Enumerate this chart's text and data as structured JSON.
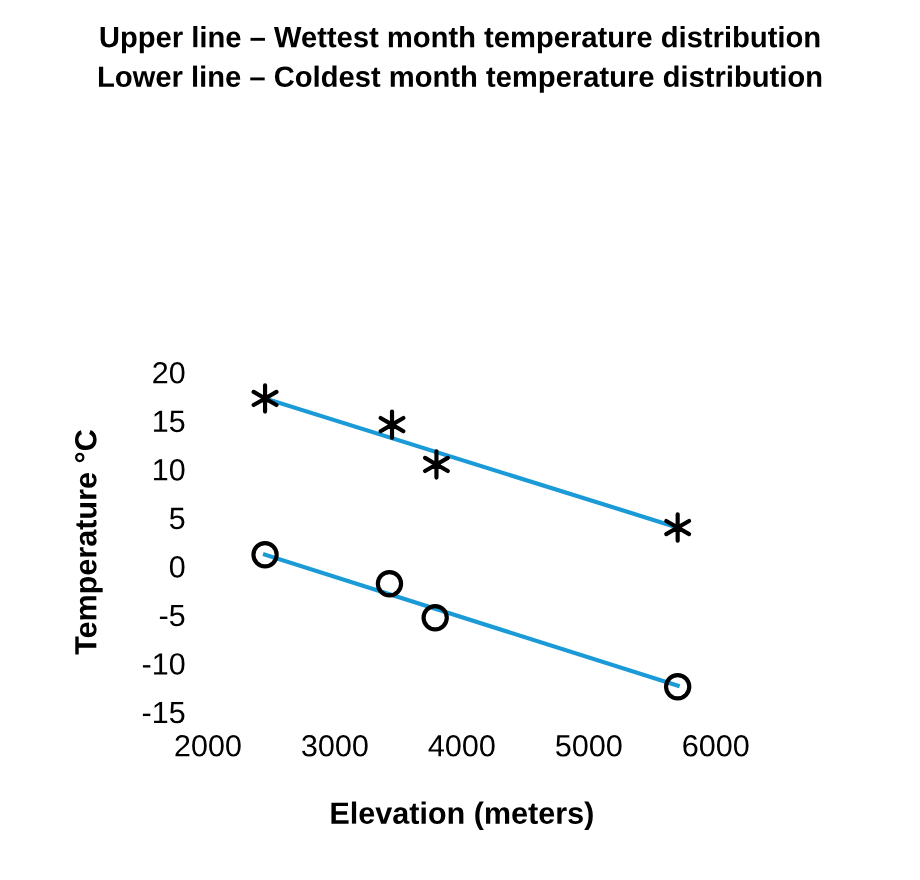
{
  "chart_data": {
    "type": "scatter",
    "title": "Upper line – Wettest month temperature distribution",
    "subtitle": "Lower line – Coldest month temperature distribution",
    "xlabel": "Elevation (meters)",
    "ylabel": "Temperature °C",
    "series": [
      {
        "marker": "cross",
        "color": "#000000",
        "x": [
          2450,
          3450,
          3800,
          5700
        ],
        "values": [
          17.3,
          14.6,
          10.5,
          4
        ]
      },
      {
        "marker": "circle",
        "color": "#000000",
        "x": [
          2450,
          3430,
          3790,
          5700
        ],
        "values": [
          1.2,
          -1.8,
          -5.3,
          -12.4
        ]
      },
      {
        "type": "line",
        "marker": "none",
        "color": "#1a9ad6",
        "x": [
          2450,
          5700
        ],
        "values": [
          17.3,
          4
        ]
      },
      {
        "type": "line",
        "marker": "none",
        "color": "#1a9ad6",
        "x": [
          2450,
          5700
        ],
        "values": [
          1.2,
          -12.3
        ]
      }
    ],
    "xlim": [
      2000,
      6000
    ],
    "ylim": [
      -15,
      20
    ],
    "xticks": [
      2000,
      3000,
      4000,
      5000,
      6000
    ],
    "yticks": [
      -15,
      -10,
      -5,
      0,
      5,
      10,
      15,
      20
    ],
    "grid": false,
    "legend": false
  }
}
